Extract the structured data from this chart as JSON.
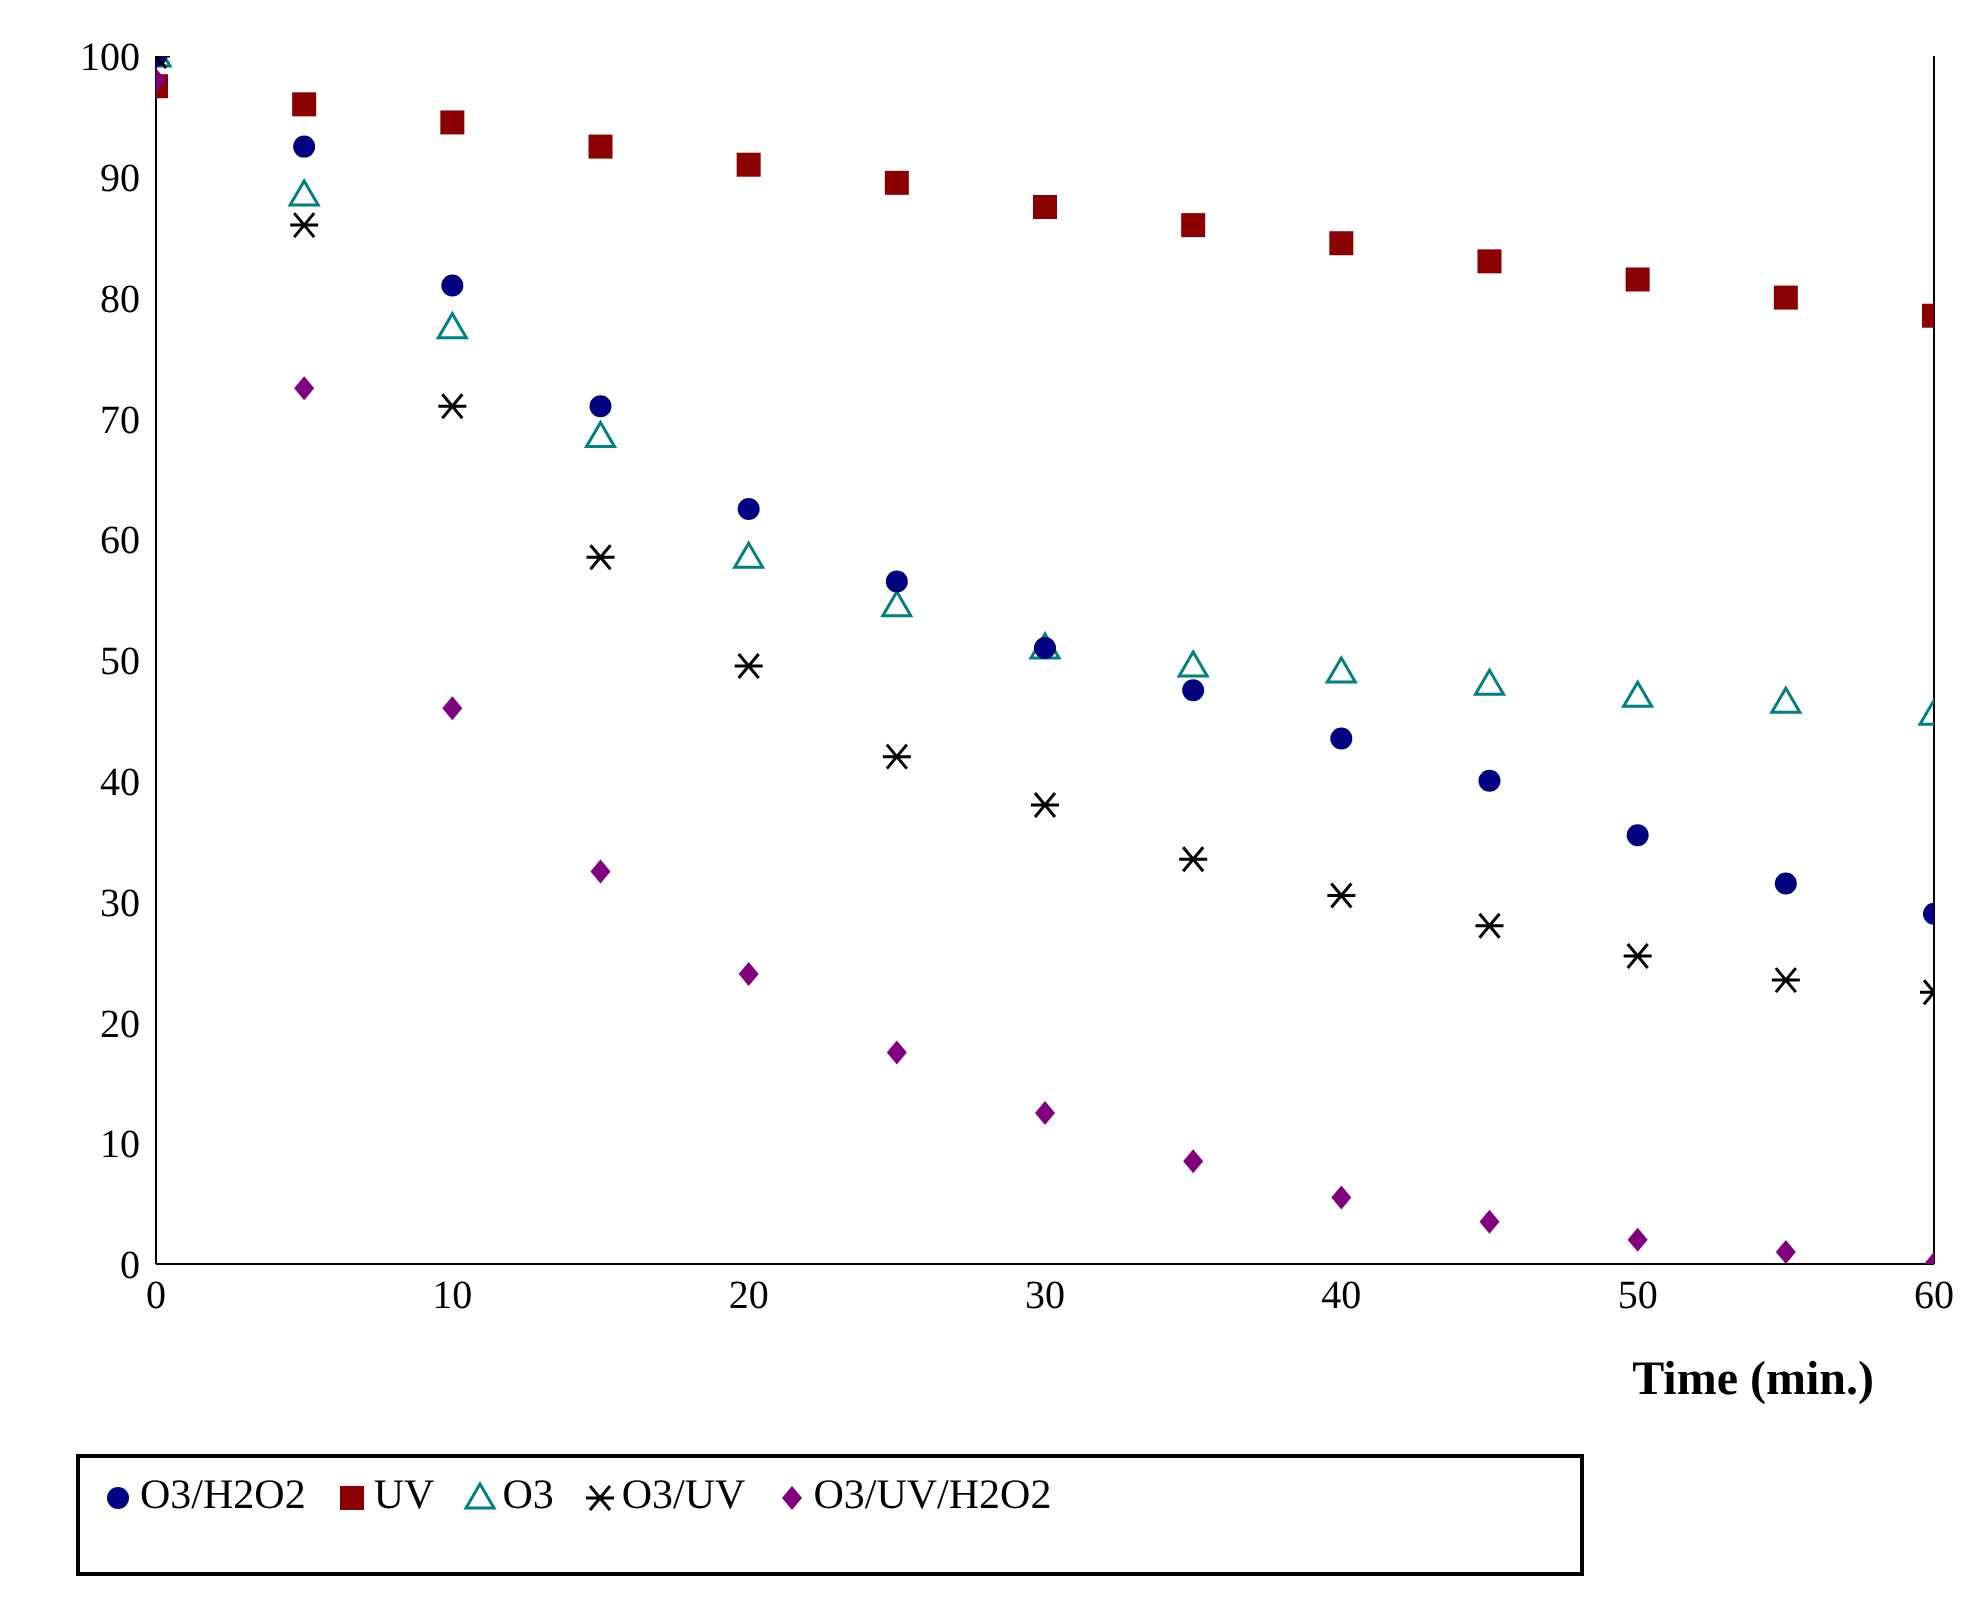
{
  "chart_data": {
    "type": "scatter",
    "xlabel": "Time (min.)",
    "x": [
      0,
      5,
      10,
      15,
      20,
      25,
      30,
      35,
      40,
      45,
      50,
      55,
      60
    ],
    "series": [
      {
        "name": "O3/H2O2",
        "color": "#000080",
        "marker": "circle",
        "values": [
          100,
          92.5,
          81,
          71,
          62.5,
          56.5,
          51,
          47.5,
          43.5,
          40,
          35.5,
          31.5,
          29
        ]
      },
      {
        "name": "UV",
        "color": "#8b0000",
        "marker": "square",
        "values": [
          97.5,
          96,
          94.5,
          92.5,
          91,
          89.5,
          87.5,
          86,
          84.5,
          83,
          81.5,
          80,
          78.5
        ]
      },
      {
        "name": "O3",
        "color": "#008080",
        "marker": "triangle",
        "values": [
          100,
          88.5,
          77.5,
          68.5,
          58.5,
          54.5,
          51,
          49.5,
          49,
          48,
          47,
          46.5,
          45.5
        ]
      },
      {
        "name": "O3/UV",
        "color": "#000000",
        "marker": "cross",
        "values": [
          100,
          86,
          71,
          58.5,
          49.5,
          42,
          38,
          33.5,
          30.5,
          28,
          25.5,
          23.5,
          22.5
        ]
      },
      {
        "name": "O3/UV/H2O2",
        "color": "#800080",
        "marker": "diamond",
        "values": [
          98,
          72.5,
          46,
          32.5,
          24,
          17.5,
          12.5,
          8.5,
          5.5,
          3.5,
          2,
          1,
          0
        ]
      }
    ],
    "xlim": [
      0,
      60
    ],
    "xticks": [
      0,
      10,
      20,
      30,
      40,
      50,
      60
    ],
    "ylim": [
      0,
      100
    ],
    "yticks": [
      0,
      10,
      20,
      30,
      40,
      50,
      60,
      70,
      80,
      90,
      100
    ],
    "grid": false,
    "legend": "bottom left"
  }
}
